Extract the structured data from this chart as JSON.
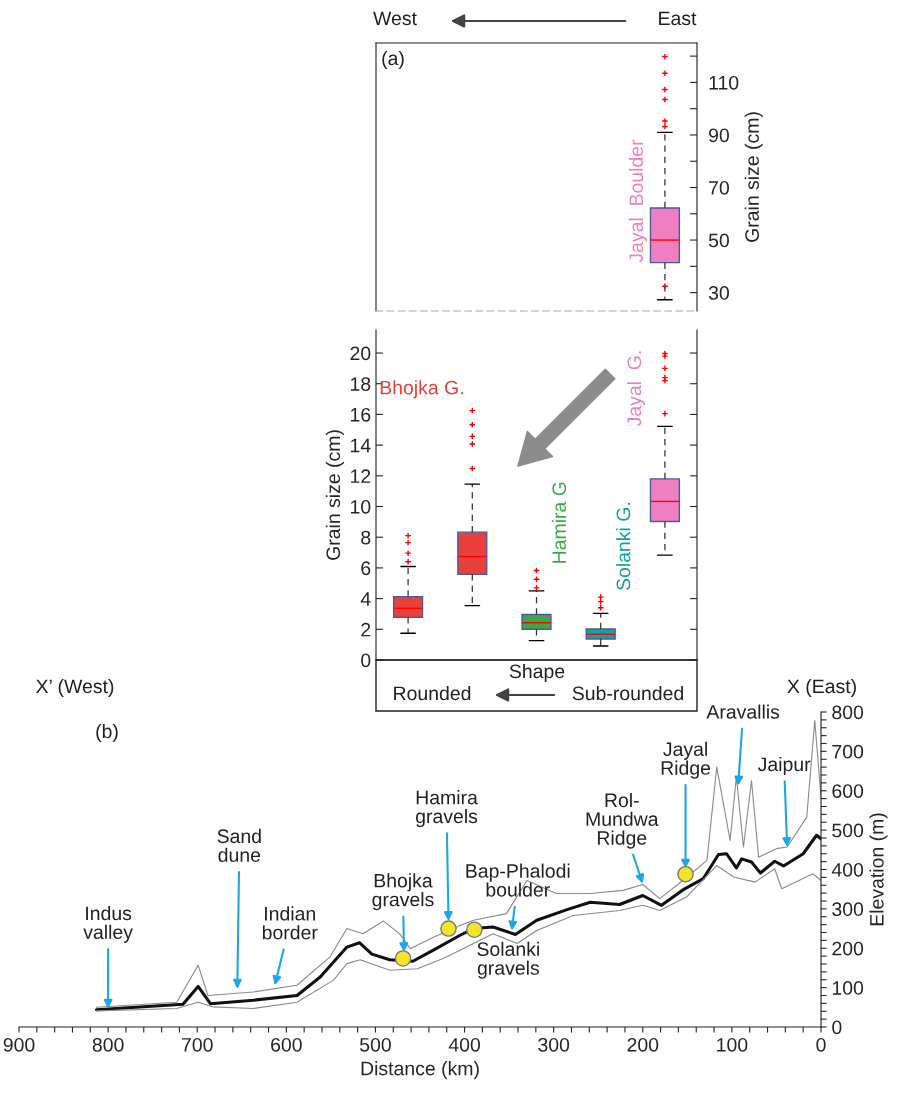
{
  "chart_data": [
    {
      "type": "box",
      "ylabel": "Grain size (cm)",
      "categories": [
        null,
        null,
        null,
        null,
        null
      ],
      "ylim": [
        23,
        125
      ],
      "yticks": [
        30,
        {
          "value": 40,
          "label": null
        },
        50,
        {
          "value": 60,
          "label": null
        },
        70,
        {
          "value": 80,
          "label": null
        },
        90,
        {
          "value": 100,
          "label": null
        },
        110,
        {
          "value": 120,
          "label": null
        }
      ],
      "series": [
        {
          "name": "Jayal  Boulder",
          "color": "#f07fc2",
          "boxes": [
            null,
            null,
            null,
            null,
            {
              "low": 27.3,
              "q1": 41.4,
              "median": 50,
              "q3": 62.2,
              "high": 91,
              "outliers": [
                32.4,
                93.2,
                95.3,
                103.5,
                107.3,
                113.5,
                119.8
              ]
            }
          ]
        }
      ],
      "annotations": [
        "West",
        "East",
        "(a)"
      ]
    },
    {
      "type": "box",
      "ylabel": "Grain size (cm)",
      "categories": [
        null,
        null,
        null,
        null,
        null
      ],
      "ylim": [
        0,
        21.5
      ],
      "yticks": [
        0,
        2,
        4,
        6,
        8,
        10,
        12,
        14,
        16,
        18,
        20
      ],
      "series": [
        {
          "name": "Bhojka G.",
          "color": "#e8403a",
          "boxes": [
            {
              "low": 1.74,
              "q1": 2.78,
              "median": 3.37,
              "q3": 4.13,
              "high": 6.09,
              "outliers": [
                6.4,
                6.96,
                7.65,
                8.1
              ]
            },
            {
              "low": 3.54,
              "q1": 5.59,
              "median": 6.74,
              "q3": 8.33,
              "high": 11.46,
              "outliers": [
                12.48,
                14.07,
                14.57,
                15.33,
                16.25
              ]
            },
            null,
            null,
            null
          ]
        },
        {
          "name": "Hamira G",
          "color": "#3aaa48",
          "boxes": [
            null,
            null,
            {
              "low": 1.26,
              "q1": 2.0,
              "median": 2.43,
              "q3": 2.96,
              "high": 4.5,
              "outliers": [
                4.7,
                5.26,
                5.83
              ]
            },
            null,
            null
          ]
        },
        {
          "name": "Solanki G.",
          "color": "#10a39b",
          "boxes": [
            null,
            null,
            null,
            {
              "low": 0.91,
              "q1": 1.37,
              "median": 1.68,
              "q3": 2.02,
              "high": 3.04,
              "outliers": [
                3.4,
                3.8,
                4.1
              ]
            },
            null
          ]
        },
        {
          "name": "Jayal  G.",
          "color": "#f07fc2",
          "boxes": [
            null,
            null,
            null,
            null,
            {
              "low": 6.83,
              "q1": 9.02,
              "median": 10.33,
              "q3": 11.8,
              "high": 15.22,
              "outliers": [
                16.05,
                18.2,
                18.4,
                19.0,
                19.8,
                19.97
              ]
            }
          ]
        }
      ],
      "annotations": [
        "Shape",
        "Rounded",
        "Sub-rounded"
      ]
    },
    {
      "type": "line",
      "xlabel": "Distance (km)",
      "ylabel": "Elevation (m)",
      "xlim": [
        900,
        0
      ],
      "ylim": [
        0,
        800
      ],
      "xticks": [
        900,
        {
          "value": 880,
          "label": null
        },
        {
          "value": 860,
          "label": null
        },
        {
          "value": 840,
          "label": null
        },
        {
          "value": 820,
          "label": null
        },
        800,
        {
          "value": 780,
          "label": null
        },
        {
          "value": 760,
          "label": null
        },
        {
          "value": 740,
          "label": null
        },
        {
          "value": 720,
          "label": null
        },
        700,
        {
          "value": 680,
          "label": null
        },
        {
          "value": 660,
          "label": null
        },
        {
          "value": 640,
          "label": null
        },
        {
          "value": 620,
          "label": null
        },
        600,
        {
          "value": 580,
          "label": null
        },
        {
          "value": 560,
          "label": null
        },
        {
          "value": 540,
          "label": null
        },
        {
          "value": 520,
          "label": null
        },
        500,
        {
          "value": 480,
          "label": null
        },
        {
          "value": 460,
          "label": null
        },
        {
          "value": 440,
          "label": null
        },
        {
          "value": 420,
          "label": null
        },
        400,
        {
          "value": 380,
          "label": null
        },
        {
          "value": 360,
          "label": null
        },
        {
          "value": 340,
          "label": null
        },
        {
          "value": 320,
          "label": null
        },
        300,
        {
          "value": 280,
          "label": null
        },
        {
          "value": 260,
          "label": null
        },
        {
          "value": 240,
          "label": null
        },
        {
          "value": 220,
          "label": null
        },
        200,
        {
          "value": 180,
          "label": null
        },
        {
          "value": 160,
          "label": null
        },
        {
          "value": 140,
          "label": null
        },
        {
          "value": 120,
          "label": null
        },
        100,
        {
          "value": 80,
          "label": null
        },
        {
          "value": 60,
          "label": null
        },
        {
          "value": 40,
          "label": null
        },
        {
          "value": 20,
          "label": null
        },
        0
      ],
      "yticks": [
        0,
        {
          "value": 20,
          "label": null
        },
        {
          "value": 40,
          "label": null
        },
        {
          "value": 60,
          "label": null
        },
        {
          "value": 80,
          "label": null
        },
        100,
        {
          "value": 120,
          "label": null
        },
        {
          "value": 140,
          "label": null
        },
        {
          "value": 160,
          "label": null
        },
        {
          "value": 180,
          "label": null
        },
        200,
        {
          "value": 220,
          "label": null
        },
        {
          "value": 240,
          "label": null
        },
        {
          "value": 260,
          "label": null
        },
        {
          "value": 280,
          "label": null
        },
        300,
        {
          "value": 320,
          "label": null
        },
        {
          "value": 340,
          "label": null
        },
        {
          "value": 360,
          "label": null
        },
        {
          "value": 380,
          "label": null
        },
        400,
        {
          "value": 420,
          "label": null
        },
        {
          "value": 440,
          "label": null
        },
        {
          "value": 460,
          "label": null
        },
        {
          "value": 480,
          "label": null
        },
        500,
        {
          "value": 520,
          "label": null
        },
        {
          "value": 540,
          "label": null
        },
        {
          "value": 560,
          "label": null
        },
        {
          "value": 580,
          "label": null
        },
        600,
        {
          "value": 620,
          "label": null
        },
        {
          "value": 640,
          "label": null
        },
        {
          "value": 660,
          "label": null
        },
        {
          "value": 680,
          "label": null
        },
        700,
        {
          "value": 720,
          "label": null
        },
        {
          "value": 740,
          "label": null
        },
        {
          "value": 760,
          "label": null
        },
        {
          "value": 780,
          "label": null
        },
        800
      ],
      "series": [
        {
          "color": "#111111",
          "x": [
            813,
            716,
            699,
            685,
            637,
            588,
            562,
            532,
            518,
            504,
            484,
            458,
            435,
            405,
            390,
            368,
            343,
            319,
            285,
            259,
            226,
            200,
            179,
            153,
            132,
            115,
            106,
            95,
            89,
            78,
            68,
            52,
            42,
            20,
            5,
            0
          ],
          "values": [
            44,
            58,
            103,
            59,
            68,
            80,
            127,
            203,
            214,
            185,
            171,
            167,
            195,
            233,
            250,
            254,
            235,
            271,
            298,
            317,
            311,
            334,
            309,
            351,
            377,
            438,
            440,
            404,
            427,
            419,
            391,
            421,
            409,
            440,
            487,
            478
          ]
        },
        {
          "color": "#8a8a8a",
          "x": [
            813,
            723,
            699,
            688,
            637,
            588,
            551,
            532,
            514,
            491,
            473,
            461,
            435,
            405,
            390,
            353,
            330,
            297,
            259,
            222,
            200,
            181,
            155,
            128,
            117,
            102,
            95,
            87,
            78,
            70,
            50,
            38,
            16,
            7,
            0
          ],
          "values": [
            50,
            63,
            157,
            80,
            89,
            106,
            178,
            250,
            237,
            269,
            237,
            199,
            228,
            258,
            271,
            288,
            372,
            339,
            339,
            347,
            362,
            326,
            372,
            423,
            660,
            474,
            635,
            457,
            626,
            431,
            453,
            457,
            533,
            778,
            584
          ]
        },
        {
          "color": "#8a8a8a",
          "x": [
            813,
            723,
            699,
            682,
            637,
            588,
            547,
            532,
            517,
            484,
            453,
            424,
            405,
            390,
            368,
            341,
            319,
            278,
            226,
            200,
            181,
            151,
            117,
            98,
            74,
            52,
            44,
            9,
            0
          ],
          "values": [
            41,
            47,
            63,
            51,
            47,
            63,
            119,
            161,
            171,
            144,
            148,
            174,
            195,
            212,
            237,
            212,
            245,
            283,
            296,
            309,
            296,
            330,
            410,
            381,
            368,
            402,
            351,
            389,
            372
          ]
        },
        {
          "type": "scatter",
          "marker": "circle",
          "color": "#f2e529",
          "x": [
            469,
            418,
            389,
            152
          ],
          "values": [
            174,
            250,
            247,
            388
          ]
        }
      ],
      "annotations": [
        {
          "text": "Indus\nvalley",
          "x": 800,
          "y": 46
        },
        {
          "text": "Sand\ndune",
          "x": 655,
          "y": 97
        },
        {
          "text": "Indian\nborder",
          "x": 613,
          "y": 106
        },
        {
          "text": "Bhojka\ngravels",
          "x": 468,
          "y": 190
        },
        {
          "text": "Hamira\ngravels",
          "x": 418,
          "y": 269
        },
        {
          "text": "Bap-Phalodi\nboulder",
          "x": 347,
          "y": 245
        },
        {
          "text": "Solanki\ngravels",
          "x": 389,
          "y": 247
        },
        {
          "text": "Rol-\nMundwa\nRidge",
          "x": 200,
          "y": 364
        },
        {
          "text": "Jayal\nRidge",
          "x": 152,
          "y": 402
        },
        {
          "text": "Aravallis",
          "x": 93,
          "y": 613
        },
        {
          "text": "Jaipur",
          "x": 38,
          "y": 457
        },
        "X’ (West)",
        "X (East)",
        "(b)"
      ]
    }
  ]
}
